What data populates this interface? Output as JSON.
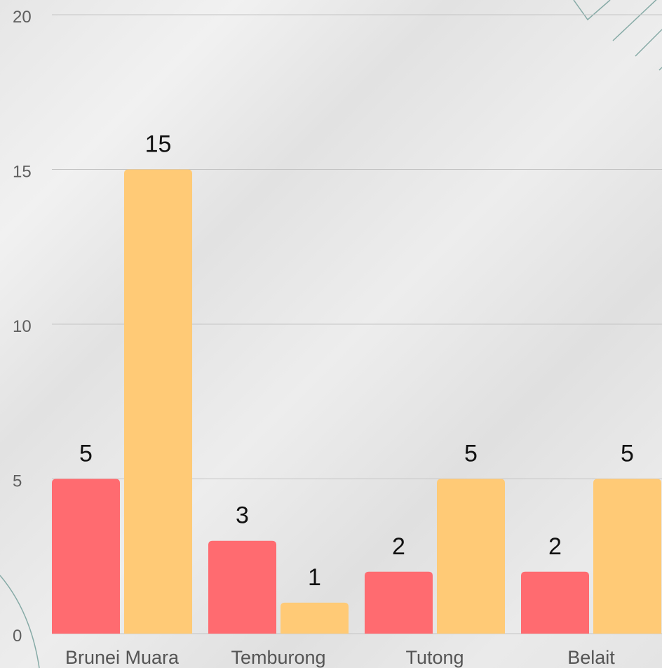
{
  "chart_data": {
    "type": "bar",
    "categories": [
      "Brunei Muara",
      "Temburong",
      "Tutong",
      "Belait"
    ],
    "series": [
      {
        "values": [
          5,
          3,
          2,
          2
        ],
        "color": "#FF6B70"
      },
      {
        "values": [
          15,
          1,
          5,
          5
        ],
        "color": "#FFCA76"
      }
    ],
    "ylim": [
      0,
      20
    ],
    "yticks": [
      "0",
      "5",
      "10",
      "15",
      "20"
    ],
    "grid": true,
    "data_labels": true
  }
}
